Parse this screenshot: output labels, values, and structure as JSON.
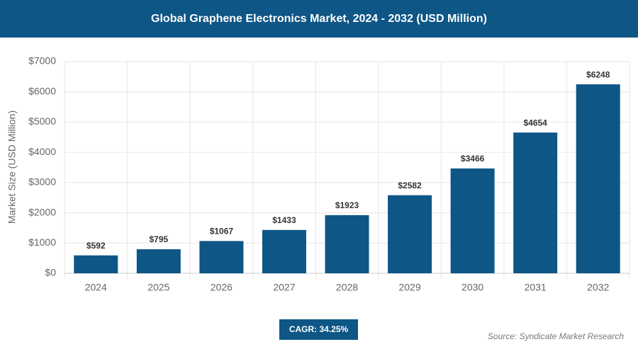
{
  "chart_data": {
    "type": "bar",
    "title": "Global Graphene Electronics Market, 2024 - 2032 (USD Million)",
    "y_label": "Market Size (USD Million)",
    "categories": [
      "2024",
      "2025",
      "2026",
      "2027",
      "2028",
      "2029",
      "2030",
      "2031",
      "2032"
    ],
    "values": [
      592,
      795,
      1067,
      1433,
      1923,
      2582,
      3466,
      4654,
      6248
    ],
    "value_labels": [
      "$592",
      "$795",
      "$1067",
      "$1433",
      "$1923",
      "$2582",
      "$3466",
      "$4654",
      "$6248"
    ],
    "color": "#0e5686",
    "ylim": [
      0,
      7000
    ],
    "yticks": [
      {
        "value": 0,
        "label": "$0"
      },
      {
        "value": 1000,
        "label": "$1000"
      },
      {
        "value": 2000,
        "label": "$2000"
      },
      {
        "value": 3000,
        "label": "$3000"
      },
      {
        "value": 4000,
        "label": "$4000"
      },
      {
        "value": 5000,
        "label": "$5000"
      },
      {
        "value": 6000,
        "label": "$6000"
      },
      {
        "value": 7000,
        "label": "$7000"
      }
    ],
    "grid": true,
    "cagr_label": "CAGR: 34.25%",
    "source": "Source: Syndicate Market Research"
  }
}
